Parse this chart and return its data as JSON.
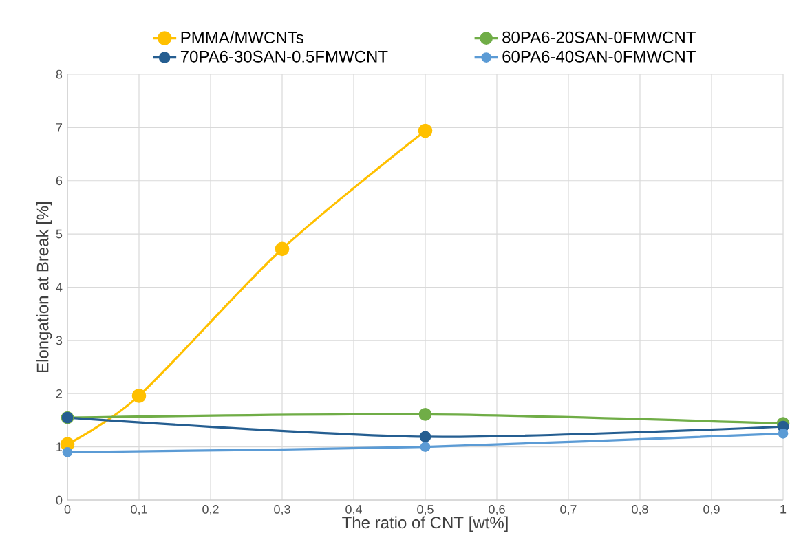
{
  "chart_data": {
    "type": "line",
    "xlabel": "The ratio of CNT [wt%]",
    "ylabel": "Elongation at Break  [%]",
    "series": [
      {
        "name": "PMMA/MWCNTs",
        "color": "#ffc000",
        "x": [
          0,
          0.1,
          0.3,
          0.5
        ],
        "values": [
          1.05,
          1.96,
          4.72,
          6.94
        ]
      },
      {
        "name": "80PA6-20SAN-0FMWCNT",
        "color": "#70ad47",
        "x": [
          0,
          0.5,
          1
        ],
        "values": [
          1.55,
          1.61,
          1.44
        ]
      },
      {
        "name": "70PA6-30SAN-0.5FMWCNT",
        "color": "#255e91",
        "x": [
          0,
          0.5,
          1
        ],
        "values": [
          1.55,
          1.19,
          1.38
        ]
      },
      {
        "name": "60PA6-40SAN-0FMWCNT",
        "color": "#5b9bd5",
        "x": [
          0,
          0.5,
          1
        ],
        "values": [
          0.9,
          1.0,
          1.25
        ]
      }
    ],
    "xlim": [
      0,
      1
    ],
    "ylim": [
      0,
      8
    ],
    "xticks": [
      0,
      {
        "value": 0.1,
        "label": "0,1"
      },
      {
        "value": 0.2,
        "label": "0,2"
      },
      {
        "value": 0.3,
        "label": "0,3"
      },
      {
        "value": 0.4,
        "label": "0,4"
      },
      {
        "value": 0.5,
        "label": "0,5"
      },
      {
        "value": 0.6,
        "label": "0,6"
      },
      {
        "value": 0.7,
        "label": "0,7"
      },
      {
        "value": 0.8,
        "label": "0,8"
      },
      {
        "value": 0.9,
        "label": "0,9"
      },
      1
    ],
    "yticks": [
      0,
      1,
      2,
      3,
      4,
      5,
      6,
      7,
      8
    ],
    "grid": true,
    "legend": "top",
    "marker": "circle",
    "line_style": "solid"
  }
}
